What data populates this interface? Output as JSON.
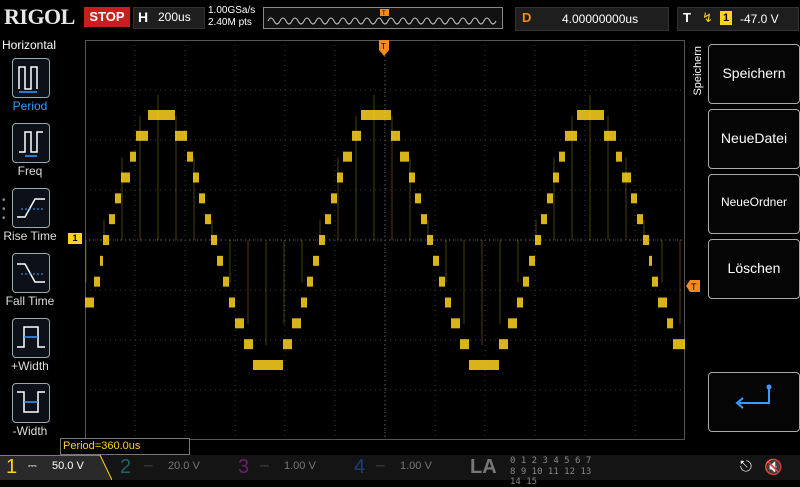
{
  "header": {
    "logo": "RIGOL",
    "run_state": "STOP",
    "timebase_label": "H",
    "timebase_value": "200us",
    "sample_rate": "1.00GSa/s",
    "memory_depth": "2.40M pts",
    "delay_label": "D",
    "delay_value": "4.00000000us",
    "trigger_label": "T",
    "trigger_channel": "1",
    "trigger_level": "-47.0 V"
  },
  "measure_panel": {
    "title": "Horizontal",
    "items": [
      {
        "label": "Period"
      },
      {
        "label": "Freq"
      },
      {
        "label": "Rise Time"
      },
      {
        "label": "Fall Time"
      },
      {
        "label": "+Width"
      },
      {
        "label": "-Width"
      }
    ]
  },
  "measurement_readout": "Period=360.0us",
  "save_menu": {
    "title": "Speichern",
    "items": [
      {
        "label": "Speichern"
      },
      {
        "label": "NeueDatei"
      },
      {
        "label": "NeueOrdner"
      },
      {
        "label": "Löschen"
      }
    ]
  },
  "markers": {
    "ch1": "1",
    "trigger": "T"
  },
  "channels": [
    {
      "num": "1",
      "value": "50.0 V",
      "color": "#ffd21e"
    },
    {
      "num": "2",
      "value": "20.0 V",
      "color": "#1ec8c8"
    },
    {
      "num": "3",
      "value": "1.00 V",
      "color": "#e01ee0"
    },
    {
      "num": "4",
      "value": "1.00 V",
      "color": "#1e6ef0"
    }
  ],
  "la": {
    "label": "LA",
    "row1": "0 1 2 3   4 5 6 7",
    "row2": "8 9 10 11 12 13 14 15"
  },
  "colors": {
    "ch1": "#ffd21e",
    "accent": "#3a9bff",
    "stop": "#c81e1e",
    "delay": "#f58a1e"
  }
}
